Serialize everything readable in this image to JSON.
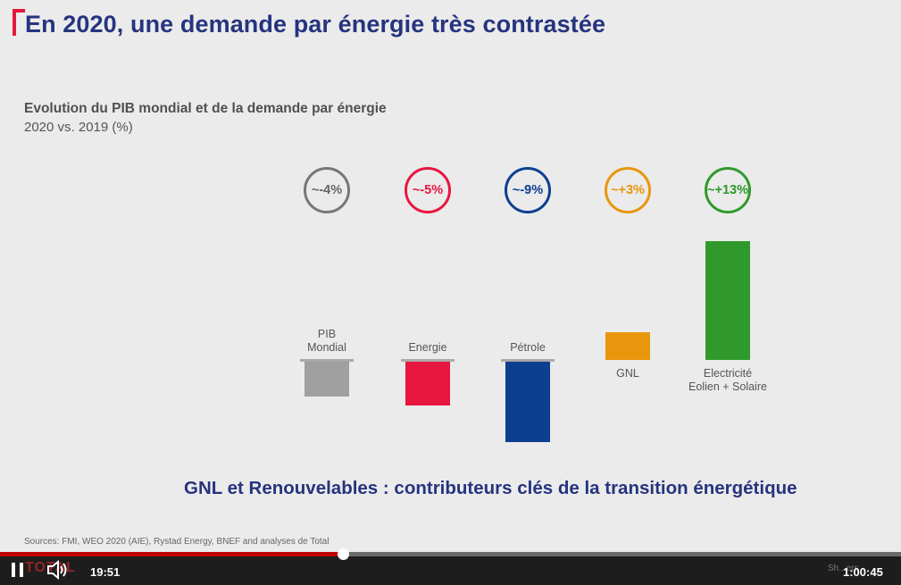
{
  "slide": {
    "title": "En 2020, une demande par énergie très contrastée",
    "subtitle": "Evolution du PIB mondial et de la demande par énergie",
    "subtitle_period": "2020 vs. 2019 (%)",
    "tagline": "GNL et Renouvelables : contributeurs clés de la transition énergétique",
    "sources": "Sources: FMI, WEO 2020 (AIE), Rystad Energy, BNEF and analyses de Total",
    "accent_color": "#e3183e",
    "title_color": "#26347f"
  },
  "chart_data": {
    "type": "bar",
    "categories": [
      "PIB Mondial",
      "Energie",
      "Pétrole",
      "GNL",
      "Electricité Eolien + Solaire"
    ],
    "category_lines": [
      [
        "PIB",
        "Mondial"
      ],
      [
        "Energie"
      ],
      [
        "Pétrole"
      ],
      [
        "GNL"
      ],
      [
        "Electricité",
        "Eolien + Solaire"
      ]
    ],
    "values": [
      -4,
      -5,
      -9,
      3,
      13
    ],
    "value_labels": [
      "~-4%",
      "~-5%",
      "~-9%",
      "~+3%",
      "~+13%"
    ],
    "colors": [
      "#a0a0a0",
      "#e8173f",
      "#0d3f8f",
      "#e8960c",
      "#2f9a2b"
    ],
    "title": "Evolution du PIB mondial et de la demande par énergie",
    "subtitle": "2020 vs. 2019 (%)",
    "grid": false,
    "legend": false
  },
  "player": {
    "current_time": "19:51",
    "total_time": "1:00:45",
    "progress_fraction": 0.327,
    "logo_text": "TOTAL",
    "right_ghost_text": "Sh...ers",
    "pause_icon": "pause-icon",
    "volume_icon": "volume-icon"
  }
}
